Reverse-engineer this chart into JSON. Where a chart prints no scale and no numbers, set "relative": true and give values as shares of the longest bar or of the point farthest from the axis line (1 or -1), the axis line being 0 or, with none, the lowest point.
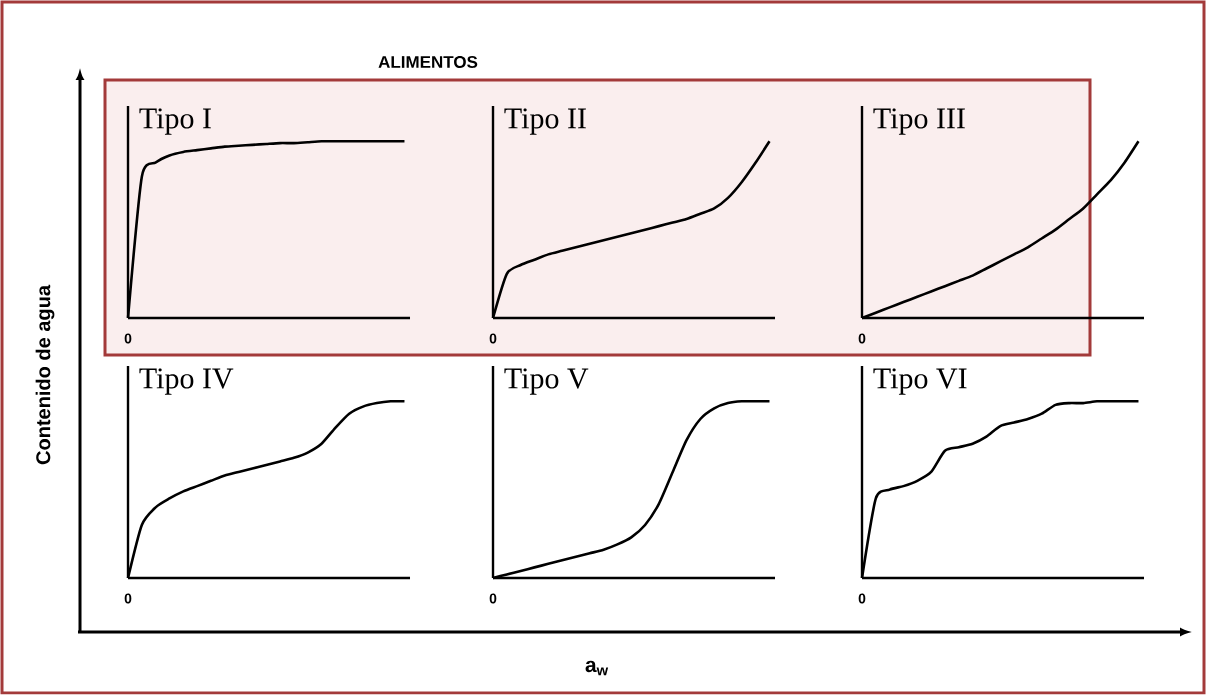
{
  "chart_data": [
    {
      "type": "line",
      "title": "Tipo I",
      "relative": true,
      "color": "#000000",
      "categories": [
        null,
        null,
        null,
        null,
        null,
        null,
        null,
        null,
        null,
        null,
        null,
        null,
        null,
        null,
        null,
        null,
        null,
        null,
        null,
        null,
        null
      ],
      "values": [
        0,
        0.8,
        0.88,
        0.92,
        0.94,
        0.95,
        0.96,
        0.97,
        0.975,
        0.98,
        0.985,
        0.99,
        0.99,
        0.995,
        1,
        1,
        1,
        1,
        1,
        1,
        1
      ],
      "annotations": [
        "0"
      ]
    },
    {
      "type": "line",
      "title": "Tipo II",
      "relative": true,
      "color": "#000000",
      "categories": [
        null,
        null,
        null,
        null,
        null,
        null,
        null,
        null,
        null,
        null,
        null,
        null,
        null,
        null,
        null,
        null,
        null,
        null,
        null,
        null,
        null
      ],
      "values": [
        0,
        0.25,
        0.3,
        0.33,
        0.36,
        0.38,
        0.4,
        0.42,
        0.44,
        0.46,
        0.48,
        0.5,
        0.52,
        0.54,
        0.56,
        0.59,
        0.62,
        0.68,
        0.77,
        0.88,
        1
      ],
      "annotations": [
        "0"
      ]
    },
    {
      "type": "line",
      "title": "Tipo III",
      "relative": true,
      "color": "#000000",
      "categories": [
        null,
        null,
        null,
        null,
        null,
        null,
        null,
        null,
        null,
        null,
        null,
        null,
        null,
        null,
        null,
        null,
        null,
        null,
        null,
        null,
        null
      ],
      "values": [
        0,
        0.03,
        0.06,
        0.09,
        0.12,
        0.15,
        0.18,
        0.21,
        0.24,
        0.28,
        0.32,
        0.36,
        0.4,
        0.45,
        0.5,
        0.56,
        0.62,
        0.7,
        0.78,
        0.88,
        1
      ],
      "annotations": [
        "0"
      ]
    },
    {
      "type": "line",
      "title": "Tipo IV",
      "relative": true,
      "color": "#000000",
      "categories": [
        null,
        null,
        null,
        null,
        null,
        null,
        null,
        null,
        null,
        null,
        null,
        null,
        null,
        null,
        null,
        null,
        null,
        null,
        null,
        null,
        null
      ],
      "values": [
        0,
        0.3,
        0.4,
        0.45,
        0.49,
        0.52,
        0.55,
        0.58,
        0.6,
        0.62,
        0.64,
        0.66,
        0.68,
        0.71,
        0.76,
        0.85,
        0.93,
        0.97,
        0.99,
        1,
        1
      ],
      "annotations": [
        "0"
      ]
    },
    {
      "type": "line",
      "title": "Tipo V",
      "relative": true,
      "color": "#000000",
      "categories": [
        null,
        null,
        null,
        null,
        null,
        null,
        null,
        null,
        null,
        null,
        null,
        null,
        null,
        null,
        null,
        null,
        null,
        null,
        null,
        null,
        null
      ],
      "values": [
        0,
        0.02,
        0.04,
        0.06,
        0.08,
        0.1,
        0.12,
        0.14,
        0.16,
        0.19,
        0.23,
        0.3,
        0.42,
        0.6,
        0.78,
        0.9,
        0.96,
        0.99,
        1,
        1,
        1
      ],
      "annotations": [
        "0"
      ]
    },
    {
      "type": "line",
      "title": "Tipo VI",
      "relative": true,
      "color": "#000000",
      "categories": [
        null,
        null,
        null,
        null,
        null,
        null,
        null,
        null,
        null,
        null,
        null,
        null,
        null,
        null,
        null,
        null,
        null,
        null,
        null,
        null,
        null
      ],
      "values": [
        0,
        0.45,
        0.5,
        0.52,
        0.55,
        0.6,
        0.72,
        0.74,
        0.76,
        0.8,
        0.86,
        0.88,
        0.9,
        0.93,
        0.98,
        0.99,
        0.99,
        1,
        1,
        1,
        1
      ],
      "annotations": [
        "0"
      ]
    },
    {
      "type": "other",
      "ylabel": "Contenido de agua",
      "xlabel": "a$_{w}$",
      "annotations": [
        "ALIMENTOS"
      ]
    }
  ]
}
